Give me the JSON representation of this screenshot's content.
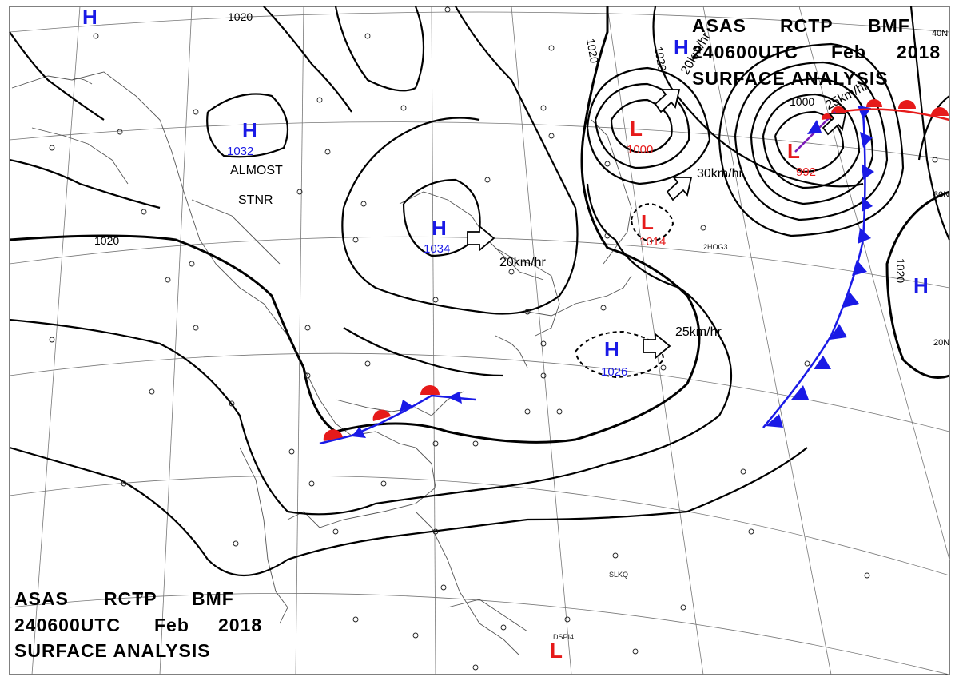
{
  "header_top": {
    "line1": [
      "ASAS",
      "RCTP",
      "BMF"
    ],
    "line2": [
      "240600UTC",
      "Feb",
      "2018"
    ],
    "line3": "SURFACE ANALYSIS"
  },
  "header_bottom": {
    "line1": [
      "ASAS",
      "RCTP",
      "BMF"
    ],
    "line2": [
      "240600UTC",
      "Feb",
      "2018"
    ],
    "line3": "SURFACE ANALYSIS"
  },
  "isobar_labels": [
    "1020",
    "1020",
    "1020",
    "1020",
    "1000",
    "1020"
  ],
  "pressure_systems": [
    {
      "type": "H",
      "pressure": "1032",
      "color": "#1a1ae6"
    },
    {
      "type": "H",
      "pressure": "1034",
      "color": "#1a1ae6"
    },
    {
      "type": "H",
      "pressure": "1026",
      "color": "#1a1ae6"
    },
    {
      "type": "L",
      "pressure": "1000",
      "color": "#e61a1a"
    },
    {
      "type": "L",
      "pressure": "992",
      "color": "#e61a1a"
    },
    {
      "type": "L",
      "pressure": "1014",
      "color": "#e61a1a"
    },
    {
      "type": "H",
      "pressure": "",
      "color": "#1a1ae6"
    },
    {
      "type": "H",
      "pressure": "",
      "color": "#1a1ae6"
    },
    {
      "type": "H",
      "pressure": "",
      "color": "#1a1ae6"
    },
    {
      "type": "L",
      "pressure": "",
      "color": "#e61a1a"
    }
  ],
  "motion_labels": [
    "20km/hr",
    "25km/hr",
    "30km/hr",
    "25km/hr",
    "20km/hr"
  ],
  "notes": {
    "almost": "ALMOST",
    "stnr": "STNR"
  },
  "latitude_labels": [
    "40N",
    "30N",
    "20N"
  ],
  "station_codes": [
    "SLKQ",
    "DSPI4",
    "2HOG3"
  ],
  "colors": {
    "warm_front": "#e61a1a",
    "cold_front": "#1a1ae6",
    "high": "#1a1ae6",
    "low": "#e61a1a"
  }
}
